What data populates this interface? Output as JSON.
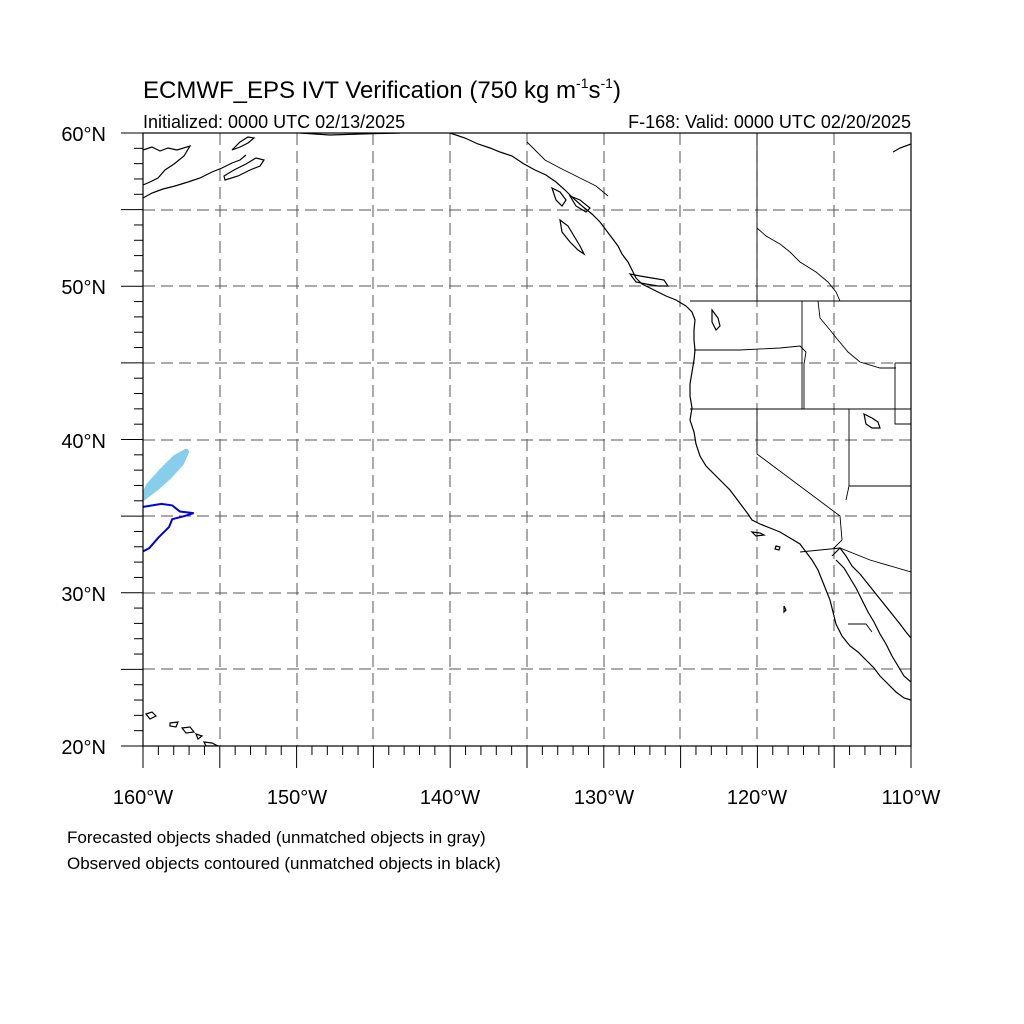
{
  "title": {
    "main": "ECMWF_EPS IVT Verification (750 kg m",
    "sup1": "-1",
    "mid": "s",
    "sup2": "-1",
    "end": ")"
  },
  "subtitle_left": "Initialized: 0000 UTC 02/13/2025",
  "subtitle_right": "F-168: Valid: 0000 UTC 02/20/2025",
  "lat_labels": [
    "60°N",
    "50°N",
    "40°N",
    "30°N",
    "20°N"
  ],
  "lon_labels": [
    "160°W",
    "150°W",
    "140°W",
    "130°W",
    "120°W",
    "110°W"
  ],
  "notes": [
    "Forecasted objects shaded (unmatched objects in gray)",
    "Observed objects contoured (unmatched objects in black)"
  ],
  "map_extent": {
    "lon": [
      -160,
      -110
    ],
    "lat": [
      20,
      60
    ]
  },
  "forecast_color": "#87ceeb",
  "observed_color": "#0000dd",
  "forecast_object": {
    "matched": true,
    "outline_lonlat": [
      [
        -160,
        36.2
      ],
      [
        -159.6,
        37.0
      ],
      [
        -158.8,
        37.9
      ],
      [
        -157.9,
        38.8
      ],
      [
        -157.2,
        39.2
      ],
      [
        -157.5,
        38.5
      ],
      [
        -158.3,
        37.6
      ],
      [
        -159.2,
        36.8
      ],
      [
        -160,
        36.2
      ]
    ]
  },
  "observed_object": {
    "matched": true,
    "outline_lonlat": [
      [
        -160,
        35.6
      ],
      [
        -158.8,
        35.8
      ],
      [
        -158.1,
        35.7
      ],
      [
        -157.6,
        35.3
      ],
      [
        -156.7,
        35.2
      ],
      [
        -157.3,
        35.0
      ],
      [
        -158.1,
        34.8
      ],
      [
        -158.3,
        34.3
      ],
      [
        -159.0,
        33.6
      ],
      [
        -159.6,
        32.9
      ],
      [
        -160,
        32.7
      ]
    ]
  }
}
